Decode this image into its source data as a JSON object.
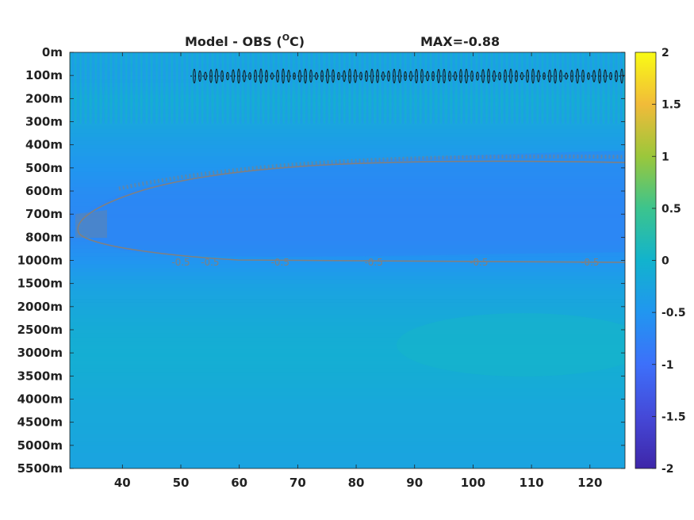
{
  "chart_data": {
    "type": "heatmap",
    "title": "Model - OBS (",
    "title_unit": "O",
    "title_suffix": "C)",
    "annotation": "MAX=-0.88",
    "xlim": [
      31,
      126
    ],
    "x_ticks": [
      40,
      50,
      60,
      70,
      80,
      90,
      100,
      110,
      120
    ],
    "y_tick_labels": [
      "0m",
      "100m",
      "200m",
      "300m",
      "400m",
      "500m",
      "600m",
      "700m",
      "800m",
      "1000m",
      "1500m",
      "2000m",
      "2500m",
      "3000m",
      "3500m",
      "4000m",
      "4500m",
      "5000m",
      "5500m"
    ],
    "colorbar": {
      "range": [
        -2,
        2
      ],
      "ticks": [
        2,
        1.5,
        1,
        0.5,
        0,
        -0.5,
        -1,
        -1.5,
        -2
      ],
      "tick_labels": [
        "2",
        "1.5",
        "1",
        "0.5",
        "0",
        "-0.5",
        "-1",
        "-1.5",
        "-2"
      ],
      "colormap": "parula"
    },
    "contour_labels": {
      "level": "-0.5",
      "x": [
        50,
        55,
        67,
        83,
        101,
        120
      ]
    },
    "field_profile": [
      {
        "level": 0,
        "value": -0.25
      },
      {
        "level": 1,
        "value": -0.3
      },
      {
        "level": 2,
        "value": -0.15
      },
      {
        "level": 3,
        "value": -0.25
      },
      {
        "level": 4,
        "value": -0.38
      },
      {
        "level": 5,
        "value": -0.5
      },
      {
        "level": 6,
        "value": -0.62
      },
      {
        "level": 7,
        "value": -0.68
      },
      {
        "level": 8,
        "value": -0.66
      },
      {
        "level": 9,
        "value": -0.5
      },
      {
        "level": 10,
        "value": -0.3
      },
      {
        "level": 11,
        "value": -0.2
      },
      {
        "level": 12,
        "value": -0.12
      },
      {
        "level": 13,
        "value": -0.08
      },
      {
        "level": 14,
        "value": -0.12
      },
      {
        "level": 15,
        "value": -0.18
      },
      {
        "level": 16,
        "value": -0.2
      },
      {
        "level": 17,
        "value": -0.24
      },
      {
        "level": 18,
        "value": -0.28
      }
    ]
  }
}
